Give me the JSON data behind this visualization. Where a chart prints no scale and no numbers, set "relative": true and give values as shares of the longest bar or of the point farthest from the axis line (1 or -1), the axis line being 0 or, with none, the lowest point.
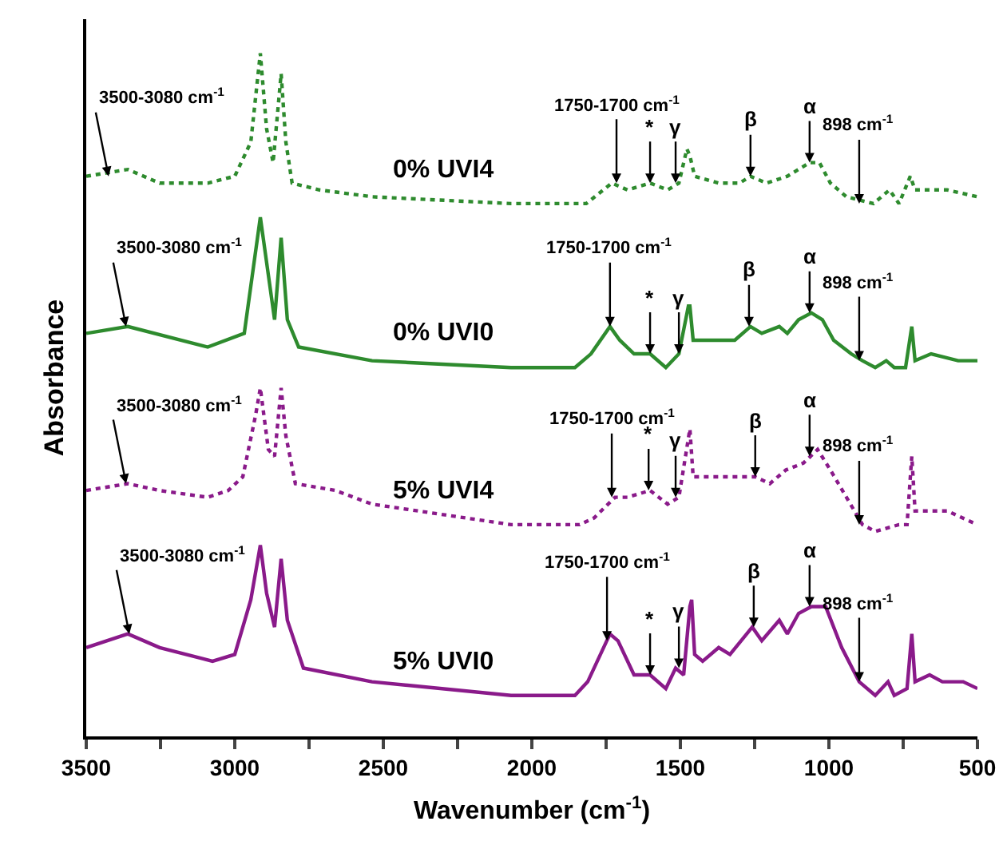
{
  "chart_data": {
    "type": "line",
    "xlabel": "Wavenumber (cm$^{-1}$)",
    "ylabel": "Absorbance",
    "relative": true,
    "xlim": [
      3500,
      500
    ],
    "xticks": [
      3500,
      {
        "value": 3250,
        "label": null
      },
      3000,
      {
        "value": 2750,
        "label": null
      },
      2500,
      {
        "value": 2250,
        "label": null
      },
      2000,
      {
        "value": 1750,
        "label": null
      },
      1500,
      {
        "value": 1250,
        "label": null
      },
      1000,
      {
        "value": 750,
        "label": null
      },
      500
    ],
    "grid": false,
    "marker": "none",
    "series": [
      {
        "name": "0% UVI4",
        "color": "#2e8b2e",
        "line_style": "dotted",
        "x": [
          3500,
          3360,
          3253,
          3091,
          3000,
          2946,
          2919,
          2914,
          2893,
          2871,
          2844,
          2828,
          2807,
          2715,
          2538,
          2070,
          1817,
          1731,
          1678,
          1602,
          1543,
          1505,
          1478,
          1468,
          1452,
          1371,
          1301,
          1264,
          1210,
          1140,
          1065,
          1032,
          995,
          941,
          850,
          796,
          764,
          726,
          710,
          656,
          602,
          500
        ],
        "values": [
          0.82,
          0.83,
          0.81,
          0.81,
          0.82,
          0.87,
          0.98,
          1.0,
          0.89,
          0.84,
          0.97,
          0.87,
          0.81,
          0.8,
          0.79,
          0.78,
          0.78,
          0.81,
          0.8,
          0.81,
          0.8,
          0.81,
          0.86,
          0.85,
          0.82,
          0.81,
          0.81,
          0.82,
          0.81,
          0.82,
          0.84,
          0.84,
          0.81,
          0.79,
          0.78,
          0.8,
          0.78,
          0.82,
          0.8,
          0.8,
          0.8,
          0.79
        ]
      },
      {
        "name": "0% UVI0",
        "color": "#2e8b2e",
        "line_style": "solid",
        "x": [
          3500,
          3360,
          3091,
          2968,
          2914,
          2866,
          2844,
          2823,
          2785,
          2538,
          2070,
          1855,
          1801,
          1737,
          1704,
          1656,
          1602,
          1549,
          1505,
          1473,
          1468,
          1457,
          1409,
          1371,
          1317,
          1264,
          1226,
          1167,
          1140,
          1102,
          1059,
          1022,
          984,
          925,
          887,
          844,
          807,
          780,
          742,
          721,
          710,
          656,
          565,
          500
        ],
        "values": [
          0.59,
          0.6,
          0.57,
          0.59,
          0.76,
          0.61,
          0.73,
          0.61,
          0.57,
          0.55,
          0.54,
          0.54,
          0.56,
          0.6,
          0.58,
          0.56,
          0.56,
          0.54,
          0.56,
          0.63,
          0.63,
          0.58,
          0.58,
          0.58,
          0.58,
          0.6,
          0.59,
          0.6,
          0.59,
          0.61,
          0.62,
          0.61,
          0.58,
          0.56,
          0.55,
          0.54,
          0.55,
          0.54,
          0.54,
          0.6,
          0.55,
          0.56,
          0.55,
          0.55
        ]
      },
      {
        "name": "5% UVI4",
        "color": "#8a1a8a",
        "line_style": "dotted",
        "x": [
          3500,
          3360,
          3253,
          3091,
          3022,
          2973,
          2930,
          2914,
          2887,
          2866,
          2844,
          2828,
          2796,
          2661,
          2538,
          2070,
          1839,
          1790,
          1720,
          1678,
          1602,
          1543,
          1505,
          1468,
          1457,
          1371,
          1248,
          1199,
          1145,
          1086,
          1038,
          995,
          941,
          887,
          844,
          764,
          737,
          721,
          710,
          602,
          500
        ],
        "values": [
          0.36,
          0.37,
          0.36,
          0.35,
          0.36,
          0.38,
          0.47,
          0.51,
          0.42,
          0.41,
          0.51,
          0.44,
          0.37,
          0.36,
          0.34,
          0.31,
          0.31,
          0.32,
          0.35,
          0.35,
          0.36,
          0.34,
          0.35,
          0.45,
          0.38,
          0.38,
          0.38,
          0.37,
          0.39,
          0.4,
          0.42,
          0.39,
          0.35,
          0.31,
          0.3,
          0.31,
          0.31,
          0.41,
          0.33,
          0.33,
          0.31
        ]
      },
      {
        "name": "5% UVI0",
        "color": "#8a1a8a",
        "line_style": "solid",
        "x": [
          3500,
          3360,
          3253,
          3075,
          3000,
          2946,
          2914,
          2893,
          2866,
          2844,
          2823,
          2769,
          2538,
          2070,
          1855,
          1812,
          1737,
          1710,
          1656,
          1602,
          1549,
          1516,
          1489,
          1468,
          1462,
          1452,
          1425,
          1371,
          1333,
          1258,
          1226,
          1167,
          1140,
          1102,
          1059,
          1011,
          957,
          898,
          844,
          801,
          780,
          737,
          721,
          710,
          661,
          618,
          548,
          500
        ],
        "values": [
          0.13,
          0.15,
          0.13,
          0.11,
          0.12,
          0.2,
          0.28,
          0.21,
          0.16,
          0.26,
          0.17,
          0.1,
          0.08,
          0.06,
          0.06,
          0.08,
          0.15,
          0.14,
          0.09,
          0.09,
          0.07,
          0.1,
          0.09,
          0.19,
          0.2,
          0.12,
          0.11,
          0.13,
          0.12,
          0.16,
          0.14,
          0.17,
          0.15,
          0.18,
          0.19,
          0.19,
          0.13,
          0.08,
          0.06,
          0.08,
          0.06,
          0.07,
          0.15,
          0.08,
          0.09,
          0.08,
          0.08,
          0.07
        ]
      }
    ],
    "annotations": [
      {
        "text": "3500-3080 cm$^{-1}$",
        "x": 3425,
        "y": 0.82
      },
      {
        "text": "1750-1700 cm$^{-1}$",
        "x": 1715,
        "y": 0.81
      },
      {
        "text": "*",
        "x": 1602,
        "y": 0.81
      },
      {
        "text": "γ",
        "x": 1516,
        "y": 0.81
      },
      {
        "text": "β",
        "x": 1264,
        "y": 0.82
      },
      {
        "text": "α",
        "x": 1065,
        "y": 0.84
      },
      {
        "text": "898 cm$^{-1}$",
        "x": 898,
        "y": 0.78
      },
      {
        "text": "3500-3080 cm$^{-1}$",
        "x": 3366,
        "y": 0.6
      },
      {
        "text": "1750-1700 cm$^{-1}$",
        "x": 1737,
        "y": 0.6
      },
      {
        "text": "*",
        "x": 1602,
        "y": 0.56
      },
      {
        "text": "γ",
        "x": 1505,
        "y": 0.56
      },
      {
        "text": "β",
        "x": 1269,
        "y": 0.6
      },
      {
        "text": "α",
        "x": 1065,
        "y": 0.62
      },
      {
        "text": "898 cm$^{-1}$",
        "x": 898,
        "y": 0.55
      },
      {
        "text": "3500-3080 cm$^{-1}$",
        "x": 3366,
        "y": 0.37
      },
      {
        "text": "1750-1700 cm$^{-1}$",
        "x": 1731,
        "y": 0.35
      },
      {
        "text": "*",
        "x": 1607,
        "y": 0.36
      },
      {
        "text": "γ",
        "x": 1516,
        "y": 0.35
      },
      {
        "text": "β",
        "x": 1248,
        "y": 0.38
      },
      {
        "text": "α",
        "x": 1065,
        "y": 0.41
      },
      {
        "text": "898 cm$^{-1}$",
        "x": 898,
        "y": 0.31
      },
      {
        "text": "3500-3080 cm$^{-1}$",
        "x": 3355,
        "y": 0.15
      },
      {
        "text": "1750-1700 cm$^{-1}$",
        "x": 1747,
        "y": 0.14
      },
      {
        "text": "*",
        "x": 1602,
        "y": 0.09
      },
      {
        "text": "γ",
        "x": 1505,
        "y": 0.1
      },
      {
        "text": "β",
        "x": 1253,
        "y": 0.16
      },
      {
        "text": "α",
        "x": 1065,
        "y": 0.19
      },
      {
        "text": "898 cm$^{-1}$",
        "x": 898,
        "y": 0.08
      }
    ]
  }
}
